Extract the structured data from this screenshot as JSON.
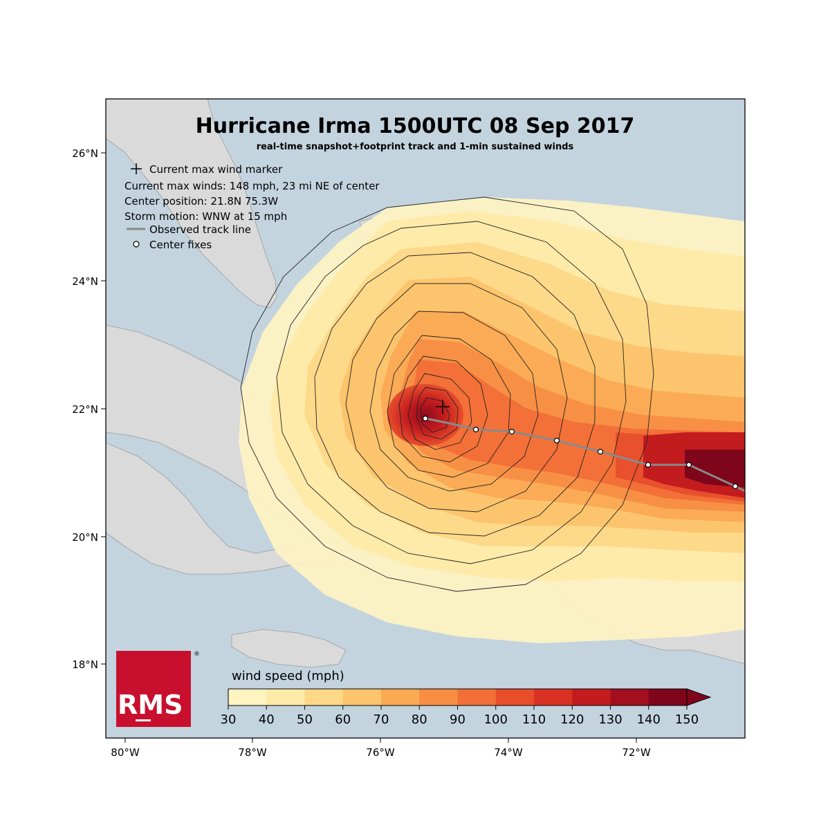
{
  "title": "Hurricane Irma 1500UTC 08 Sep 2017",
  "subtitle": "real-time snapshot+footprint track and 1-min sustained winds",
  "legend": {
    "max_wind_marker": "Current max wind marker",
    "current_max_winds": "Current max winds: 148 mph, 23 mi NE of center",
    "center_position": "Center position: 21.8N 75.3W",
    "storm_motion": "Storm motion: WNW at 15 mph",
    "track_line": "Observed track line",
    "center_fixes": "Center fixes"
  },
  "y_ticks": [
    "18°N",
    "20°N",
    "22°N",
    "24°N",
    "26°N"
  ],
  "x_ticks": [
    "80°W",
    "78°W",
    "76°W",
    "74°W",
    "72°W"
  ],
  "colorbar": {
    "label": "wind speed (mph)",
    "ticks": [
      "30",
      "40",
      "50",
      "60",
      "70",
      "80",
      "90",
      "100",
      "110",
      "120",
      "130",
      "140",
      "150"
    ],
    "colors": [
      "#fff3c2",
      "#feeaa8",
      "#fdd888",
      "#fcc46c",
      "#fbaa54",
      "#f78e44",
      "#f26f38",
      "#e84e2c",
      "#d93224",
      "#c31c1f",
      "#a40f1e",
      "#7f051b"
    ]
  },
  "logo": {
    "text": "RMS",
    "mark": "®",
    "color": "#c8102e"
  },
  "colors": {
    "ocean": "#c3d4df",
    "land": "#dadada",
    "track": "#8a8a8a"
  }
}
